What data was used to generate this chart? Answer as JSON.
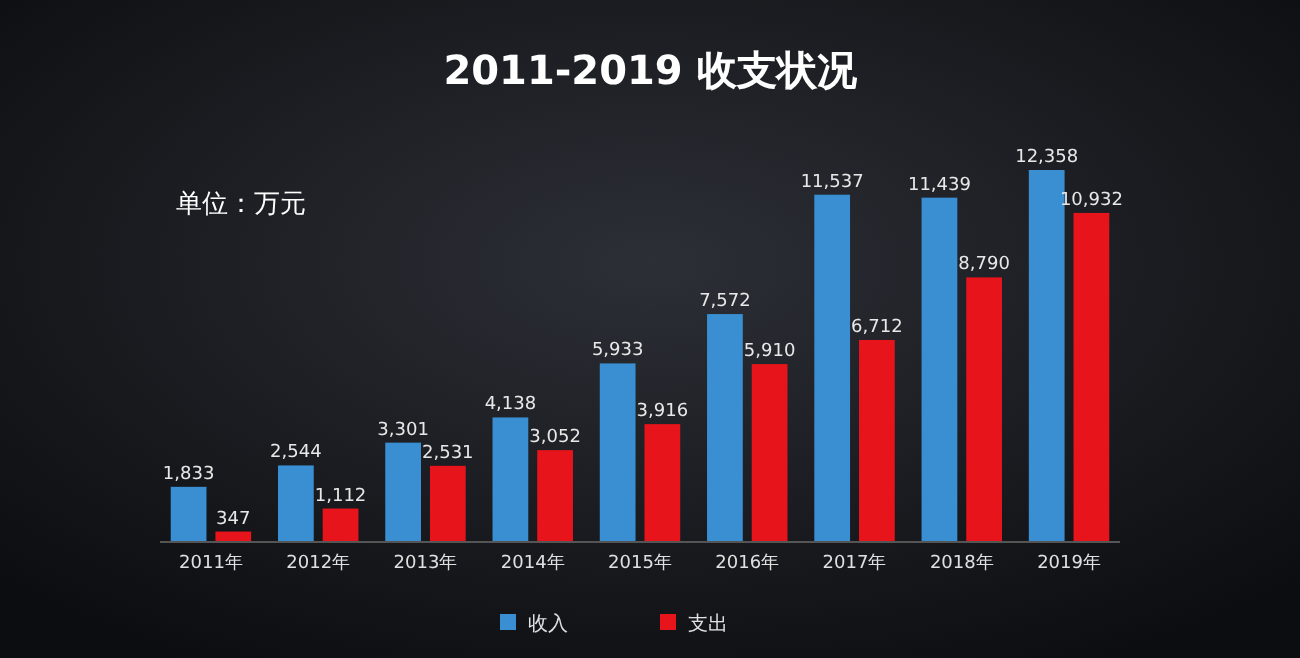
{
  "chart_data": {
    "type": "bar",
    "title": "2011-2019 收支状况",
    "annotations": [
      "单位：万元"
    ],
    "categories": [
      "2011年",
      "2012年",
      "2013年",
      "2014年",
      "2015年",
      "2016年",
      "2017年",
      "2018年",
      "2019年"
    ],
    "series": [
      {
        "name": "收入",
        "color": "#3a8fd3",
        "values": [
          1833,
          2544,
          3301,
          4138,
          5933,
          7572,
          11537,
          11439,
          12358
        ],
        "value_labels": [
          "1,833",
          "2,544",
          "3,301",
          "4,138",
          "5,933",
          "7,572",
          "11,537",
          "11,439",
          "12,358"
        ]
      },
      {
        "name": "支出",
        "color": "#e8141b",
        "values": [
          347,
          1112,
          2531,
          3052,
          3916,
          5910,
          6712,
          8790,
          10932
        ],
        "value_labels": [
          "347",
          "1,112",
          "2,531",
          "3,052",
          "3,916",
          "5,910",
          "6,712",
          "8,790",
          "10,932"
        ]
      }
    ],
    "legend": "bottom"
  }
}
